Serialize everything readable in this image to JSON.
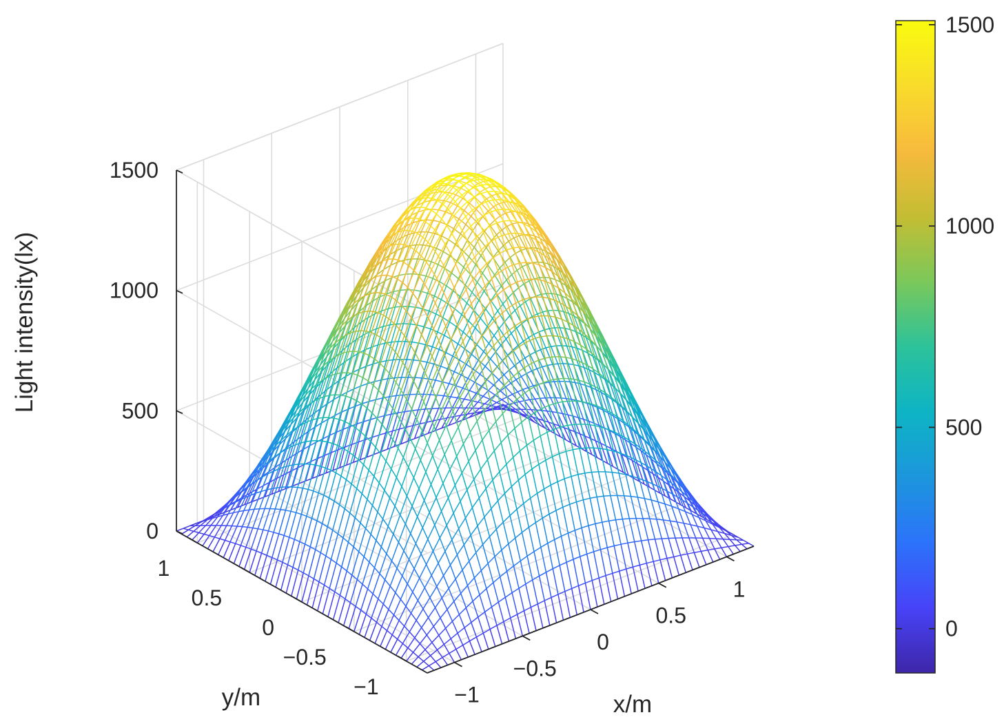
{
  "chart_data": {
    "type": "surface",
    "title": "",
    "xlabel": "x/m",
    "ylabel": "y/m",
    "zlabel": "Light intensity(lx)",
    "x_range": [
      -1.2,
      1.2
    ],
    "y_range": [
      -1.2,
      1.2
    ],
    "zlim": [
      0,
      1500
    ],
    "x_ticks": [
      "−1",
      "−0.5",
      "0",
      "0.5",
      "1"
    ],
    "x_tick_values": [
      -1,
      -0.5,
      0,
      0.5,
      1
    ],
    "y_ticks": [
      "−1",
      "−0.5",
      "0",
      "0.5",
      "1"
    ],
    "y_tick_values": [
      -1,
      -0.5,
      0,
      0.5,
      1
    ],
    "z_ticks": [
      "0",
      "500",
      "1000",
      "1500"
    ],
    "z_tick_values": [
      0,
      500,
      1000,
      1500
    ],
    "surface": {
      "function": "peak * cos(pi*x/2.4) * cos(pi*y/2.4)",
      "peak": 1500,
      "grid_points_per_side": 49,
      "corner_value": 0,
      "edge_midpoint_value": 0,
      "center_value": 1500
    },
    "colorbar": {
      "range": [
        -110,
        1510
      ],
      "ticks": [
        "0",
        "500",
        "1000",
        "1500"
      ],
      "tick_values": [
        0,
        500,
        1000,
        1500
      ],
      "colormap": "parula",
      "colors": [
        "#3e26a8",
        "#4743f8",
        "#2c73fa",
        "#1c96dc",
        "#0db4c4",
        "#2cc29a",
        "#7bc85a",
        "#c4bd33",
        "#f7ba3d",
        "#f9dc2b",
        "#f9fb0e"
      ]
    },
    "grid": true
  }
}
